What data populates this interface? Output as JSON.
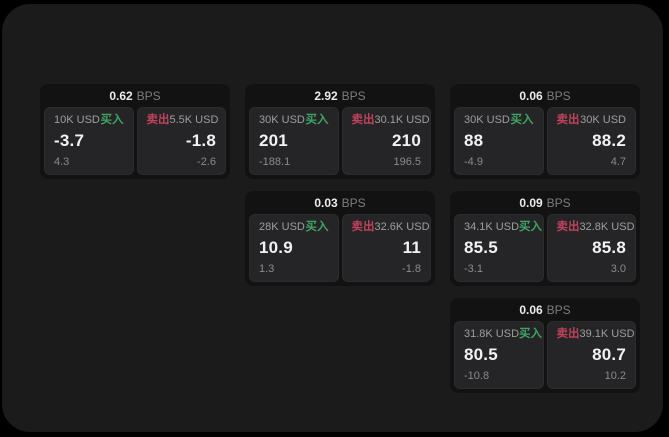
{
  "labels": {
    "buy": "买入",
    "sell": "卖出",
    "bps_unit": "BPS"
  },
  "colors": {
    "backdrop": "#000000",
    "window": "#1b1b1c",
    "card": "#121213",
    "pane": "#252527",
    "buy_green": "#3fa463",
    "sell_red": "#c0425a",
    "text_primary": "#f2f2f2",
    "text_muted": "#9e9e9e",
    "text_dim": "#8a8a8a"
  },
  "cards": [
    {
      "bps": "0.62",
      "grid": {
        "row": 1,
        "col": 1
      },
      "buy": {
        "amount": "10K USD",
        "price": "-3.7",
        "delta": "4.3"
      },
      "sell": {
        "amount": "5.5K USD",
        "price": "-1.8",
        "delta": "-2.6"
      }
    },
    {
      "bps": "2.92",
      "grid": {
        "row": 1,
        "col": 2
      },
      "buy": {
        "amount": "30K USD",
        "price": "201",
        "delta": "-188.1"
      },
      "sell": {
        "amount": "30.1K USD",
        "price": "210",
        "delta": "196.5"
      }
    },
    {
      "bps": "0.06",
      "grid": {
        "row": 1,
        "col": 3
      },
      "buy": {
        "amount": "30K USD",
        "price": "88",
        "delta": "-4.9"
      },
      "sell": {
        "amount": "30K USD",
        "price": "88.2",
        "delta": "4.7"
      }
    },
    {
      "bps": "0.03",
      "grid": {
        "row": 2,
        "col": 2
      },
      "buy": {
        "amount": "28K USD",
        "price": "10.9",
        "delta": "1.3"
      },
      "sell": {
        "amount": "32.6K USD",
        "price": "11",
        "delta": "-1.8"
      }
    },
    {
      "bps": "0.09",
      "grid": {
        "row": 2,
        "col": 3
      },
      "buy": {
        "amount": "34.1K USD",
        "price": "85.5",
        "delta": "-3.1"
      },
      "sell": {
        "amount": "32.8K USD",
        "price": "85.8",
        "delta": "3.0"
      }
    },
    {
      "bps": "0.06",
      "grid": {
        "row": 3,
        "col": 3
      },
      "buy": {
        "amount": "31.8K USD",
        "price": "80.5",
        "delta": "-10.8"
      },
      "sell": {
        "amount": "39.1K USD",
        "price": "80.7",
        "delta": "10.2"
      }
    }
  ]
}
